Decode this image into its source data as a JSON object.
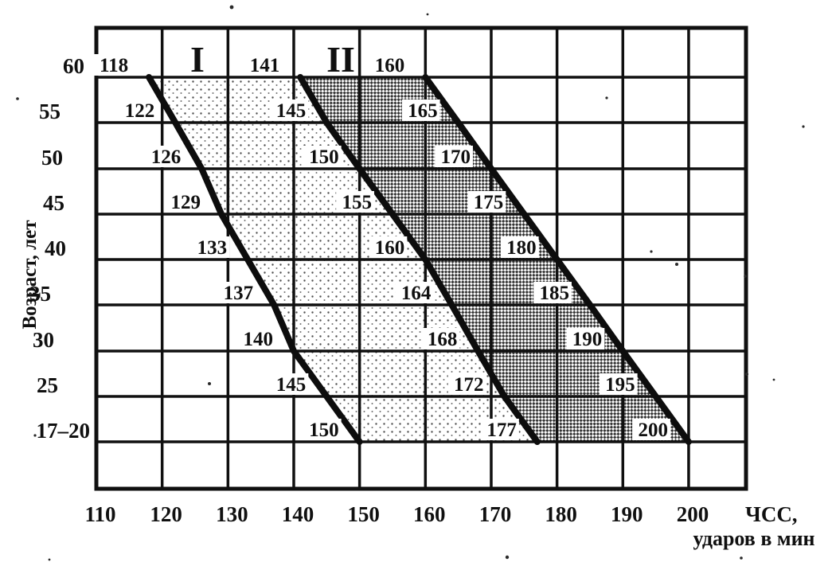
{
  "axes": {
    "y_title": "Возраст, лет",
    "x_title_line1": "ЧСС,",
    "x_title_line2": "ударов в мин",
    "x_ticks": [
      "110",
      "120",
      "130",
      "140",
      "150",
      "160",
      "170",
      "180",
      "190",
      "200"
    ],
    "y_ticks": [
      "60",
      "55",
      "50",
      "45",
      "40",
      "35",
      "30",
      "25",
      "17–20"
    ]
  },
  "zones": {
    "zone1_label": "I",
    "zone2_label": "II"
  },
  "colors": {
    "ink": "#101010",
    "paper": "#ffffff",
    "zone1_stipple": "#4e4e4e",
    "zone2_hatch": "#343434"
  },
  "chart_data": {
    "type": "line",
    "title": "",
    "xlabel": "ЧСС, ударов в мин",
    "ylabel": "Возраст, лет",
    "x_ticks": [
      110,
      120,
      130,
      140,
      150,
      160,
      170,
      180,
      190,
      200
    ],
    "xlim": [
      110,
      200
    ],
    "categories": [
      "60",
      "55",
      "50",
      "45",
      "40",
      "35",
      "30",
      "25",
      "17–20"
    ],
    "grid": true,
    "legend_position": "none",
    "zone_labels": [
      "I",
      "II"
    ],
    "series": [
      {
        "name": "zone-I-lower-boundary",
        "values": [
          118,
          122,
          126,
          129,
          133,
          137,
          140,
          145,
          150
        ]
      },
      {
        "name": "zone-I-II-boundary",
        "values": [
          141,
          145,
          150,
          155,
          160,
          164,
          168,
          172,
          177
        ]
      },
      {
        "name": "zone-II-upper-boundary",
        "values": [
          160,
          165,
          170,
          175,
          180,
          185,
          190,
          195,
          200
        ]
      }
    ],
    "annotations": [
      "Zone I shaded with light stipple between series 1 and 2",
      "Zone II shaded with dark crosshatch between series 2 and 3"
    ]
  }
}
